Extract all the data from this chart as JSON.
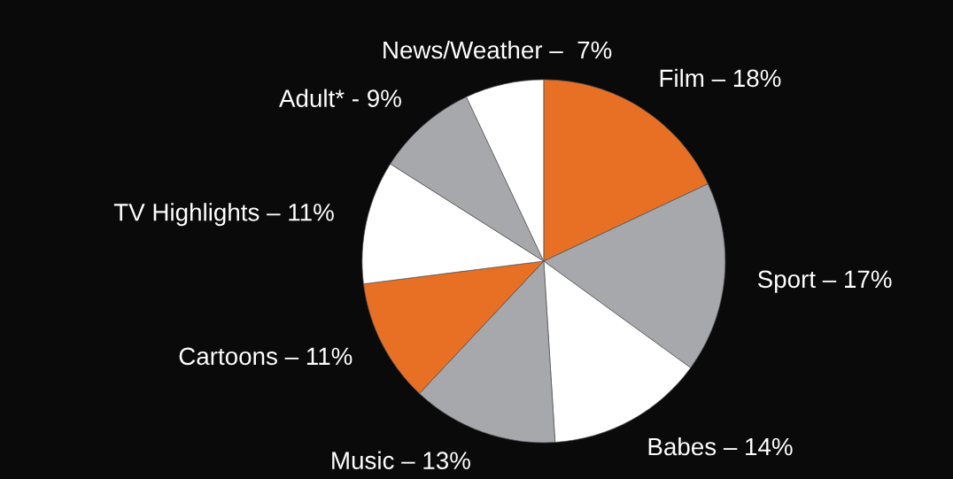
{
  "chart_data": {
    "type": "pie",
    "categories": [
      "Film – 18%",
      "Sport – 17%",
      "Babes – 14%",
      "Music – 13%",
      "Cartoons – 11%",
      "TV Highlights – 11%",
      "Adult* - 9%",
      "News/Weather –  7%"
    ],
    "values": [
      18,
      17,
      14,
      13,
      11,
      11,
      9,
      7
    ],
    "colors": [
      "#e87025",
      "#a7a8ab",
      "#ffffff",
      "#a7a8ab",
      "#e87025",
      "#ffffff",
      "#a7a8ab",
      "#ffffff"
    ]
  }
}
